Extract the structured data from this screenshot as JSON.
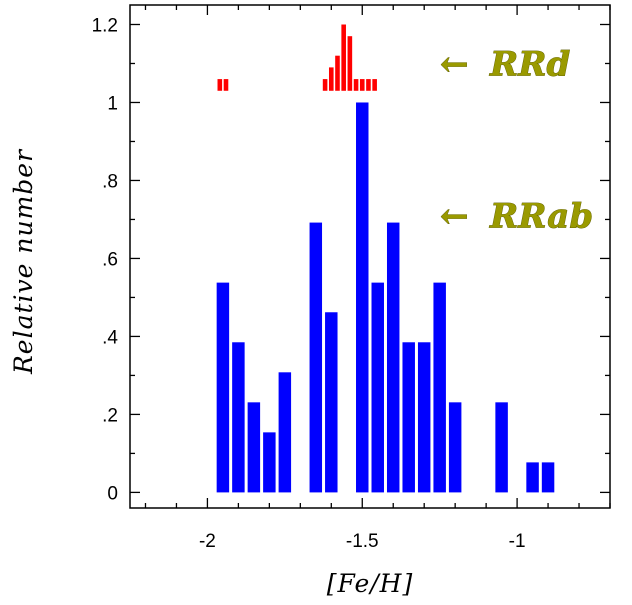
{
  "chart_data": {
    "type": "bar",
    "xlabel": "[Fe/H]",
    "ylabel": "Relative number",
    "xlim": [
      -2.25,
      -0.7
    ],
    "ylim": [
      -0.04,
      1.25
    ],
    "xticks": [
      {
        "value": -2,
        "label": "-2"
      },
      {
        "value": -1.5,
        "label": "-1.5"
      },
      {
        "value": -1,
        "label": "-1"
      }
    ],
    "yticks": [
      {
        "value": 0,
        "label": "0"
      },
      {
        "value": 0.2,
        "label": ".2"
      },
      {
        "value": 0.4,
        "label": ".4"
      },
      {
        "value": 0.6,
        "label": ".6"
      },
      {
        "value": 0.8,
        "label": ".8"
      },
      {
        "value": 1,
        "label": "1"
      },
      {
        "value": 1.2,
        "label": "1.2"
      }
    ],
    "series": [
      {
        "name": "RRab",
        "color": "#0000ff",
        "bin_width": 0.05,
        "base": 0,
        "x": [
          -1.95,
          -1.9,
          -1.85,
          -1.8,
          -1.75,
          -1.7,
          -1.65,
          -1.6,
          -1.55,
          -1.5,
          -1.45,
          -1.4,
          -1.35,
          -1.3,
          -1.25,
          -1.2,
          -1.15,
          -1.05,
          -0.95,
          -0.9
        ],
        "values": [
          0.538,
          0.385,
          0.231,
          0.154,
          0.308,
          0.0,
          0.692,
          0.462,
          0.0,
          1.0,
          0.538,
          0.692,
          0.385,
          0.385,
          0.538,
          0.231,
          0.0,
          0.231,
          0.077,
          0.077
        ]
      },
      {
        "name": "RRd",
        "color": "#ff0000",
        "bin_width": 0.02,
        "base": 1.03,
        "x": [
          -1.96,
          -1.94,
          -1.62,
          -1.6,
          -1.58,
          -1.56,
          -1.54,
          -1.52,
          -1.5,
          -1.48,
          -1.46
        ],
        "values": [
          0.03,
          0.03,
          0.03,
          0.06,
          0.09,
          0.17,
          0.14,
          0.03,
          0.03,
          0.03,
          0.03
        ]
      }
    ],
    "annotations": [
      {
        "series": "RRd",
        "text": "RRd",
        "arrow": "←",
        "color": "#9a9a00"
      },
      {
        "series": "RRab",
        "text": "RRab",
        "arrow": "←",
        "color": "#9a9a00"
      }
    ],
    "grid": false
  }
}
